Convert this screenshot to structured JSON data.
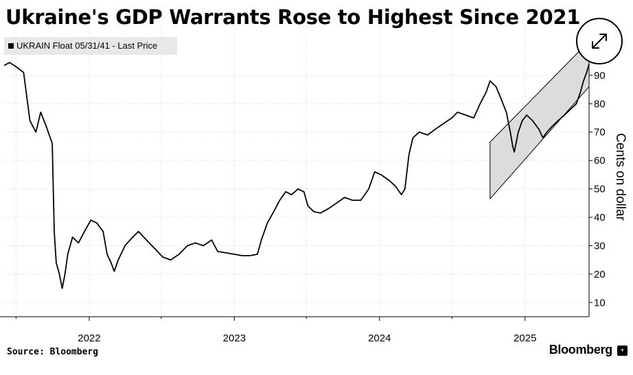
{
  "chart_data": {
    "type": "line",
    "title": "Ukraine's GDP Warrants Rose to Highest Since 2021",
    "ylabel": "Cents on dollar",
    "legend": "UKRAIN Float 05/31/41 - Last Price",
    "legend_position": "top-left",
    "grid": true,
    "xlim": [
      "2021-06-01",
      "2025-06-11"
    ],
    "ylim": [
      5,
      96
    ],
    "yticks": [
      10,
      20,
      30,
      40,
      50,
      60,
      70,
      80,
      90
    ],
    "xticks": [
      "2022",
      "2023",
      "2024",
      "2025"
    ],
    "series": [
      {
        "values": [
          [
            "2021-06-01",
            93.5
          ],
          [
            "2021-06-15",
            94.5
          ],
          [
            "2021-07-01",
            93.0
          ],
          [
            "2021-07-20",
            91.0
          ],
          [
            "2021-08-05",
            74.0
          ],
          [
            "2021-08-20",
            70.0
          ],
          [
            "2021-09-01",
            77.0
          ],
          [
            "2021-09-15",
            72.0
          ],
          [
            "2021-09-30",
            66.0
          ],
          [
            "2021-10-05",
            35.0
          ],
          [
            "2021-10-10",
            24.0
          ],
          [
            "2021-10-18",
            20.0
          ],
          [
            "2021-10-25",
            15.0
          ],
          [
            "2021-11-01",
            20.0
          ],
          [
            "2021-11-08",
            27.0
          ],
          [
            "2021-11-20",
            33.0
          ],
          [
            "2021-12-05",
            31.0
          ],
          [
            "2021-12-20",
            35.0
          ],
          [
            "2022-01-05",
            39.0
          ],
          [
            "2022-01-20",
            38.0
          ],
          [
            "2022-02-05",
            35.0
          ],
          [
            "2022-02-15",
            27.0
          ],
          [
            "2022-02-25",
            24.0
          ],
          [
            "2022-03-05",
            21.0
          ],
          [
            "2022-03-15",
            25.0
          ],
          [
            "2022-04-01",
            30.0
          ],
          [
            "2022-04-20",
            33.0
          ],
          [
            "2022-05-05",
            35.0
          ],
          [
            "2022-05-25",
            32.0
          ],
          [
            "2022-06-15",
            29.0
          ],
          [
            "2022-07-05",
            26.0
          ],
          [
            "2022-07-25",
            25.0
          ],
          [
            "2022-08-15",
            27.0
          ],
          [
            "2022-09-05",
            30.0
          ],
          [
            "2022-09-25",
            31.0
          ],
          [
            "2022-10-15",
            30.0
          ],
          [
            "2022-11-05",
            32.0
          ],
          [
            "2022-11-20",
            28.0
          ],
          [
            "2022-12-10",
            27.5
          ],
          [
            "2023-01-01",
            27.0
          ],
          [
            "2023-01-20",
            26.5
          ],
          [
            "2023-02-10",
            26.5
          ],
          [
            "2023-02-28",
            27.0
          ],
          [
            "2023-03-10",
            32.0
          ],
          [
            "2023-03-25",
            38.0
          ],
          [
            "2023-04-10",
            42.0
          ],
          [
            "2023-04-25",
            46.0
          ],
          [
            "2023-05-10",
            49.0
          ],
          [
            "2023-05-25",
            48.0
          ],
          [
            "2023-06-10",
            50.0
          ],
          [
            "2023-06-25",
            49.0
          ],
          [
            "2023-07-05",
            44.0
          ],
          [
            "2023-07-20",
            42.0
          ],
          [
            "2023-08-05",
            41.5
          ],
          [
            "2023-08-25",
            43.0
          ],
          [
            "2023-09-15",
            45.0
          ],
          [
            "2023-10-05",
            47.0
          ],
          [
            "2023-10-25",
            46.0
          ],
          [
            "2023-11-15",
            46.0
          ],
          [
            "2023-12-05",
            50.0
          ],
          [
            "2023-12-20",
            56.0
          ],
          [
            "2024-01-05",
            55.0
          ],
          [
            "2024-01-25",
            53.0
          ],
          [
            "2024-02-10",
            51.0
          ],
          [
            "2024-02-25",
            48.0
          ],
          [
            "2024-03-05",
            50.0
          ],
          [
            "2024-03-15",
            62.0
          ],
          [
            "2024-03-25",
            68.0
          ],
          [
            "2024-04-10",
            70.0
          ],
          [
            "2024-05-01",
            69.0
          ],
          [
            "2024-05-20",
            71.0
          ],
          [
            "2024-06-10",
            73.0
          ],
          [
            "2024-07-01",
            75.0
          ],
          [
            "2024-07-15",
            77.0
          ],
          [
            "2024-08-05",
            76.0
          ],
          [
            "2024-08-25",
            75.0
          ],
          [
            "2024-09-10",
            80.0
          ],
          [
            "2024-09-25",
            84.0
          ],
          [
            "2024-10-05",
            88.0
          ],
          [
            "2024-10-20",
            86.0
          ],
          [
            "2024-11-01",
            82.0
          ],
          [
            "2024-11-15",
            77.0
          ],
          [
            "2024-11-25",
            70.0
          ],
          [
            "2024-12-01",
            65.0
          ],
          [
            "2024-12-05",
            63.0
          ],
          [
            "2024-12-15",
            70.0
          ],
          [
            "2024-12-25",
            74.0
          ],
          [
            "2025-01-05",
            76.0
          ],
          [
            "2025-01-20",
            74.0
          ],
          [
            "2025-02-05",
            71.0
          ],
          [
            "2025-02-15",
            68.0
          ],
          [
            "2025-02-25",
            70.0
          ],
          [
            "2025-03-10",
            72.0
          ],
          [
            "2025-03-25",
            74.0
          ],
          [
            "2025-04-10",
            76.0
          ],
          [
            "2025-04-25",
            78.0
          ],
          [
            "2025-05-10",
            80.0
          ],
          [
            "2025-05-20",
            84.0
          ],
          [
            "2025-05-28",
            88.0
          ],
          [
            "2025-06-05",
            91.0
          ],
          [
            "2025-06-11",
            94.0
          ]
        ]
      }
    ],
    "annotations": [
      {
        "type": "band",
        "x": [
          "2024-10-05",
          "2025-06-11"
        ],
        "lower": [
          46.5,
          86.0
        ],
        "upper": [
          66.5,
          102.0
        ]
      }
    ]
  },
  "source": "Source: Bloomberg",
  "brand": "Bloomberg",
  "brand_icon": "bloomberg-plus-icon",
  "expand_icon": "expand-arrows-icon",
  "colors": {
    "line": "#000000",
    "band_fill": "#dcdcdc",
    "grid": "#d9d9d9",
    "legend_bg": "#e8e8e8"
  }
}
